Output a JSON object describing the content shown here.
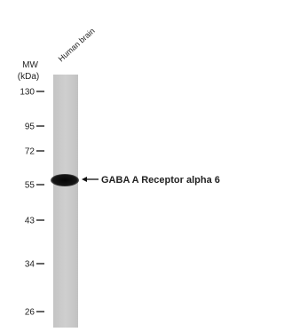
{
  "lane": {
    "label": "Human brain"
  },
  "mw_label": {
    "line1": "MW",
    "line2": "(kDa)"
  },
  "markers": [
    "130",
    "95",
    "72",
    "55",
    "43",
    "34",
    "26"
  ],
  "band": {
    "label": "GABA A Receptor alpha 6"
  }
}
